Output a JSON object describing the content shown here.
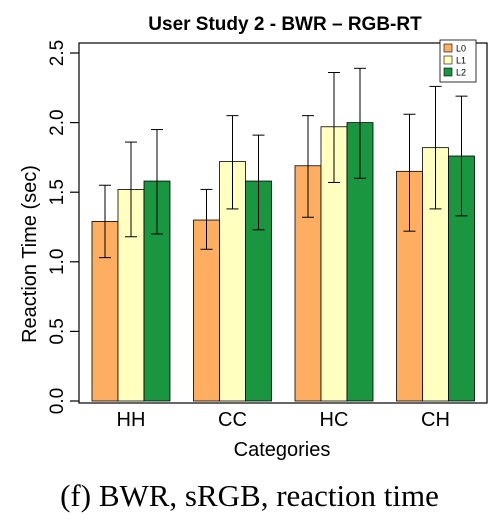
{
  "caption": "(f)  BWR, sRGB, reaction time",
  "colors": {
    "L0": "#FDAE61",
    "L1": "#FFFFBF",
    "L2": "#1A9641"
  },
  "chart_data": {
    "type": "bar",
    "title": "User  Study 2 - BWR – RGB-RT",
    "xlabel": "Categories",
    "ylabel": "Reaction Time (sec)",
    "ylim": [
      0,
      2.5
    ],
    "yticks": [
      "0.0",
      "0.5",
      "1.0",
      "1.5",
      "2.0",
      "2.5"
    ],
    "categories": [
      "HH",
      "CC",
      "HC",
      "CH"
    ],
    "series": [
      {
        "name": "L0",
        "values": [
          1.29,
          1.3,
          1.69,
          1.65
        ],
        "err_low": [
          1.03,
          1.09,
          1.32,
          1.22
        ],
        "err_high": [
          1.55,
          1.52,
          2.05,
          2.06
        ]
      },
      {
        "name": "L1",
        "values": [
          1.52,
          1.72,
          1.97,
          1.82
        ],
        "err_low": [
          1.18,
          1.38,
          1.57,
          1.38
        ],
        "err_high": [
          1.86,
          2.05,
          2.36,
          2.26
        ]
      },
      {
        "name": "L2",
        "values": [
          1.58,
          1.58,
          2.0,
          1.76
        ],
        "err_low": [
          1.2,
          1.23,
          1.6,
          1.33
        ],
        "err_high": [
          1.95,
          1.91,
          2.39,
          2.19
        ]
      }
    ],
    "error_bars": true,
    "grid": false,
    "legend_position": "top-right"
  }
}
